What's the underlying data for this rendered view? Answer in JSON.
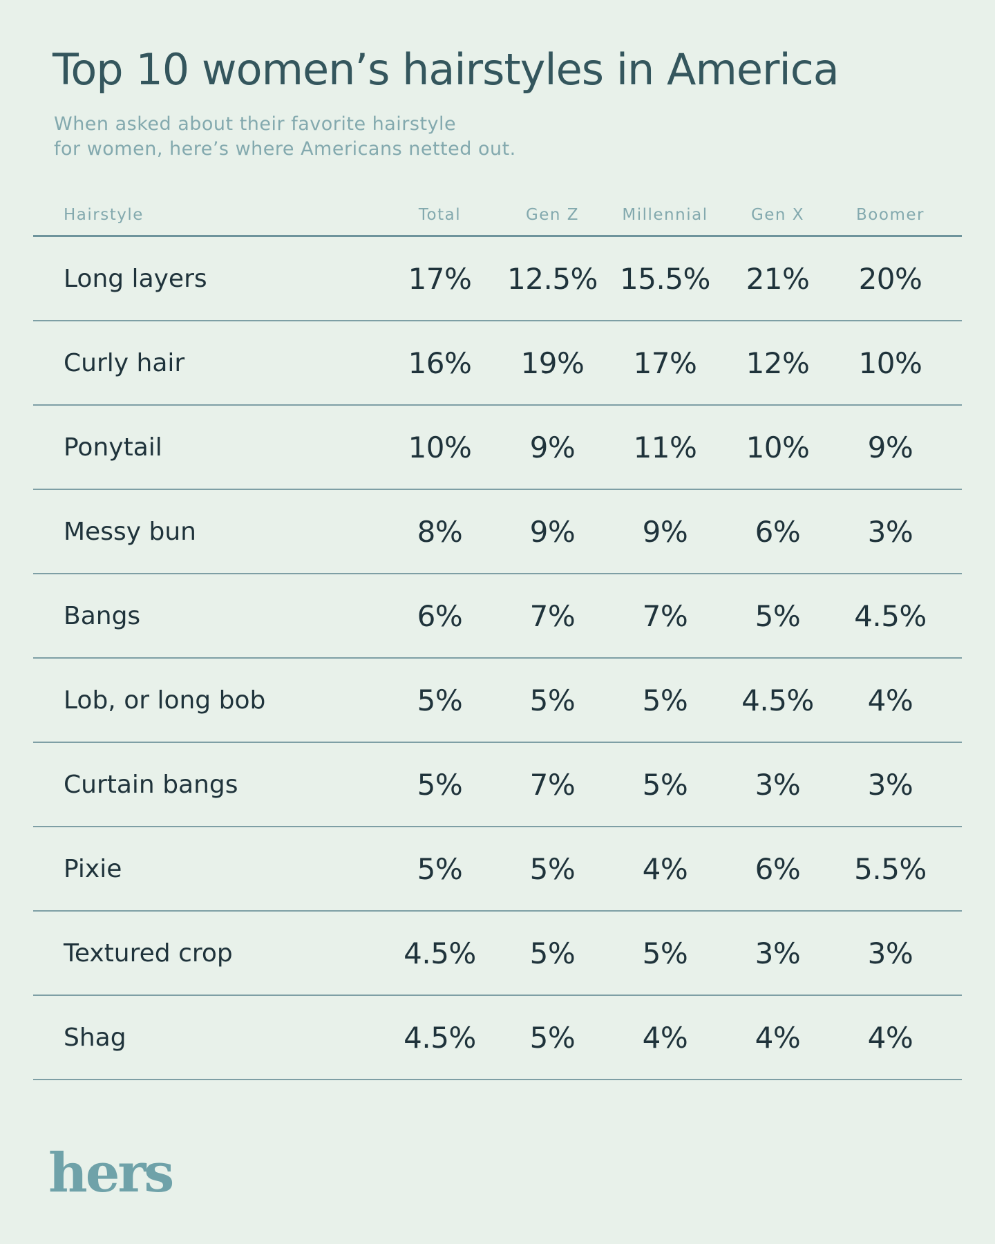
{
  "page": {
    "colors": {
      "background": "#E8F1EA",
      "title": "#34565D",
      "muted_teal": "#83A9AE",
      "dark_text": "#1F333B",
      "divider": "#7E9FA5",
      "logo": "#6FA2A9"
    }
  },
  "header": {
    "title": "Top 10 women’s hairstyles in America",
    "subtitle_line1": "When asked about their favorite hairstyle",
    "subtitle_line2": "for women, here’s where Americans netted out."
  },
  "chart_data": {
    "type": "table",
    "title": "Top 10 women’s hairstyles in America",
    "columns": [
      "Hairstyle",
      "Total",
      "Gen Z",
      "Millennial",
      "Gen X",
      "Boomer"
    ],
    "rows": [
      {
        "label": "Long layers",
        "values": [
          "17%",
          "12.5%",
          "15.5%",
          "21%",
          "20%"
        ]
      },
      {
        "label": "Curly hair",
        "values": [
          "16%",
          "19%",
          "17%",
          "12%",
          "10%"
        ]
      },
      {
        "label": "Ponytail",
        "values": [
          "10%",
          "9%",
          "11%",
          "10%",
          "9%"
        ]
      },
      {
        "label": "Messy bun",
        "values": [
          "8%",
          "9%",
          "9%",
          "6%",
          "3%"
        ]
      },
      {
        "label": "Bangs",
        "values": [
          "6%",
          "7%",
          "7%",
          "5%",
          "4.5%"
        ]
      },
      {
        "label": "Lob, or long bob",
        "values": [
          "5%",
          "5%",
          "5%",
          "4.5%",
          "4%"
        ]
      },
      {
        "label": "Curtain bangs",
        "values": [
          "5%",
          "7%",
          "5%",
          "3%",
          "3%"
        ]
      },
      {
        "label": "Pixie",
        "values": [
          "5%",
          "5%",
          "4%",
          "6%",
          "5.5%"
        ]
      },
      {
        "label": "Textured crop",
        "values": [
          "4.5%",
          "5%",
          "5%",
          "3%",
          "3%"
        ]
      },
      {
        "label": "Shag",
        "values": [
          "4.5%",
          "5%",
          "4%",
          "4%",
          "4%"
        ]
      }
    ]
  },
  "footer": {
    "logo_text": "hers"
  }
}
